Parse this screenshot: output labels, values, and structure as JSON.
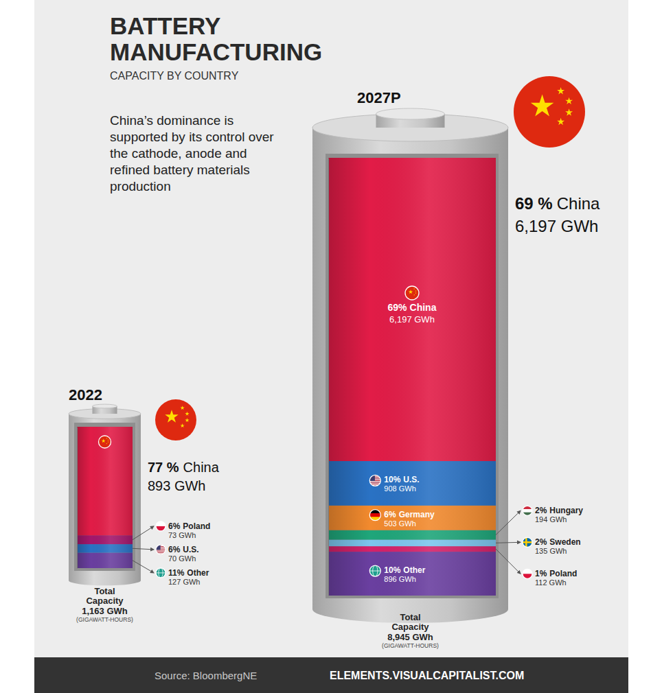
{
  "header": {
    "title": "BATTERY MANUFACTURING",
    "subtitle": "CAPACITY BY COUNTRY",
    "note": "China’s dominance is supported by its control over the cathode, anode and refined battery materials production"
  },
  "chart_data": [
    {
      "type": "bar",
      "stacked": true,
      "data_labels": true,
      "tick_labels": false,
      "title": "2022",
      "categories": [
        "Other",
        "U.S.",
        "Poland",
        "China"
      ],
      "values": [
        127,
        70,
        73,
        893
      ],
      "share_labels": [
        "11%",
        "6%",
        "6%",
        null
      ],
      "value_labels": [
        "127 GWh",
        "70 GWh",
        "73 GWh",
        null
      ],
      "colors": [
        "#6a3fa0",
        "#2a72c4",
        "#a3176c",
        "#e21c47"
      ],
      "ylim": [
        0,
        1163
      ],
      "callout": {
        "share_label": "77 %",
        "value_label": "893 GWh"
      },
      "total_title": "Total Capacity",
      "total_label": "1,163 GWh",
      "total_unit": "(GIGAWATT-HOURS)"
    },
    {
      "type": "bar",
      "stacked": true,
      "data_labels": true,
      "tick_labels": false,
      "title": "2027P",
      "categories": [
        "Other",
        "Poland",
        "Sweden",
        "Hungary",
        "Germany",
        "U.S.",
        "China"
      ],
      "values": [
        896,
        112,
        135,
        194,
        503,
        908,
        6197
      ],
      "share_labels": [
        "10%",
        "1%",
        "2%",
        "2%",
        "6%",
        "10%",
        "69%"
      ],
      "value_labels": [
        "896 GWh",
        "112 GWh",
        "135 GWh",
        "194 GWh",
        "503 GWh",
        "908 GWh",
        "6,197 GWh"
      ],
      "colors": [
        "#6a3fa0",
        "#d4226a",
        "#7cc6ee",
        "#1fa67a",
        "#f28a2e",
        "#2a72c4",
        "#e21c47"
      ],
      "ylim": [
        0,
        8945
      ],
      "callout": {
        "share_label": "69 %",
        "value_label": "6,197 GWh"
      },
      "total_title": "Total Capacity",
      "total_label": "8,945 GWh",
      "total_unit": "(GIGAWATT-HOURS)"
    }
  ],
  "footer": {
    "source": "Source: BloombergNE",
    "site": "ELEMENTS.VISUALCAPITALIST.COM"
  }
}
